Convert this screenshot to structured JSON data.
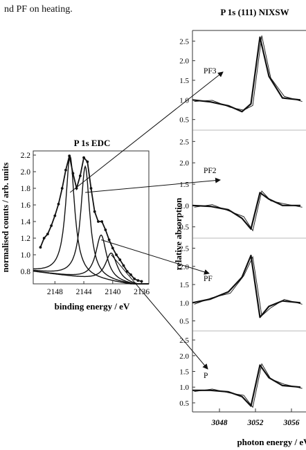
{
  "caption_fragment": "nd PF on heating.",
  "chart_data": [
    {
      "type": "line",
      "title": "P 1s EDC",
      "xlabel": "binding energy / eV",
      "ylabel": "normalised counts / arb. units",
      "xlim": [
        2151,
        2135
      ],
      "ylim": [
        0.65,
        2.25
      ],
      "xticks": [
        "2148",
        "2144",
        "2140",
        "2136"
      ],
      "yticks": [
        "2.2",
        "2.0",
        "1.8",
        "1.6",
        "1.4",
        "1.2",
        "1.0",
        "0.8"
      ],
      "component_peaks_eV": [
        2145.9,
        2143.8,
        2141.6,
        2140.2
      ],
      "series": [
        {
          "values": [
            {
              "x": 2150.0,
              "y": 1.09
            },
            {
              "x": 2149.5,
              "y": 1.2
            },
            {
              "x": 2149.0,
              "y": 1.25
            },
            {
              "x": 2148.5,
              "y": 1.35
            },
            {
              "x": 2148.0,
              "y": 1.47
            },
            {
              "x": 2147.5,
              "y": 1.61
            },
            {
              "x": 2147.0,
              "y": 1.8
            },
            {
              "x": 2146.5,
              "y": 2.02
            },
            {
              "x": 2146.0,
              "y": 2.19
            },
            {
              "x": 2145.5,
              "y": 1.98
            },
            {
              "x": 2145.0,
              "y": 1.8
            },
            {
              "x": 2144.5,
              "y": 1.95
            },
            {
              "x": 2144.0,
              "y": 2.17
            },
            {
              "x": 2143.5,
              "y": 2.12
            },
            {
              "x": 2143.0,
              "y": 1.8
            },
            {
              "x": 2142.5,
              "y": 1.52
            },
            {
              "x": 2142.0,
              "y": 1.4
            },
            {
              "x": 2141.5,
              "y": 1.4
            },
            {
              "x": 2141.0,
              "y": 1.3
            },
            {
              "x": 2140.5,
              "y": 1.18
            },
            {
              "x": 2140.0,
              "y": 1.08
            },
            {
              "x": 2139.5,
              "y": 1.0
            },
            {
              "x": 2139.0,
              "y": 0.94
            },
            {
              "x": 2138.5,
              "y": 0.87
            },
            {
              "x": 2138.0,
              "y": 0.8
            },
            {
              "x": 2137.5,
              "y": 0.76
            },
            {
              "x": 2137.0,
              "y": 0.71
            },
            {
              "x": 2136.5,
              "y": 0.69
            },
            {
              "x": 2136.0,
              "y": 0.68
            }
          ]
        }
      ]
    },
    {
      "type": "line",
      "title": "P 1s (111) NIXSW",
      "xlabel": "photon energy / eV",
      "ylabel": "relative absorption",
      "xticks": [
        "3048",
        "3052",
        "3056"
      ],
      "yticks": [
        "2.5",
        "2.0",
        "1.5",
        "1.0",
        "0.5"
      ],
      "panels": [
        {
          "label": "PF3",
          "ylim": [
            0.3,
            2.7
          ],
          "values": [
            {
              "x": 3045,
              "y": 1.0
            },
            {
              "x": 3047,
              "y": 0.95
            },
            {
              "x": 3049,
              "y": 0.85
            },
            {
              "x": 3050.5,
              "y": 0.7
            },
            {
              "x": 3051.5,
              "y": 0.9
            },
            {
              "x": 3052.5,
              "y": 2.6
            },
            {
              "x": 3053.5,
              "y": 1.6
            },
            {
              "x": 3055,
              "y": 1.05
            },
            {
              "x": 3057,
              "y": 1.0
            }
          ]
        },
        {
          "label": "PF2",
          "ylim": [
            0.3,
            2.7
          ],
          "values": [
            {
              "x": 3045,
              "y": 1.0
            },
            {
              "x": 3047,
              "y": 0.98
            },
            {
              "x": 3049,
              "y": 0.9
            },
            {
              "x": 3050.5,
              "y": 0.7
            },
            {
              "x": 3051.5,
              "y": 0.45
            },
            {
              "x": 3052.5,
              "y": 1.3
            },
            {
              "x": 3053.5,
              "y": 1.15
            },
            {
              "x": 3055,
              "y": 1.0
            },
            {
              "x": 3057,
              "y": 1.0
            }
          ]
        },
        {
          "label": "PF",
          "ylim": [
            0.3,
            2.7
          ],
          "values": [
            {
              "x": 3045,
              "y": 1.0
            },
            {
              "x": 3047,
              "y": 1.1
            },
            {
              "x": 3049,
              "y": 1.3
            },
            {
              "x": 3050.5,
              "y": 1.7
            },
            {
              "x": 3051.5,
              "y": 2.3
            },
            {
              "x": 3052.5,
              "y": 0.6
            },
            {
              "x": 3053.5,
              "y": 0.9
            },
            {
              "x": 3055,
              "y": 1.05
            },
            {
              "x": 3057,
              "y": 1.0
            }
          ]
        },
        {
          "label": "P",
          "ylim": [
            0.3,
            2.7
          ],
          "values": [
            {
              "x": 3045,
              "y": 0.9
            },
            {
              "x": 3047,
              "y": 0.9
            },
            {
              "x": 3049,
              "y": 0.85
            },
            {
              "x": 3050.5,
              "y": 0.7
            },
            {
              "x": 3051.5,
              "y": 0.4
            },
            {
              "x": 3052.5,
              "y": 1.7
            },
            {
              "x": 3053.5,
              "y": 1.3
            },
            {
              "x": 3055,
              "y": 1.05
            },
            {
              "x": 3057,
              "y": 1.0
            }
          ]
        }
      ]
    }
  ]
}
